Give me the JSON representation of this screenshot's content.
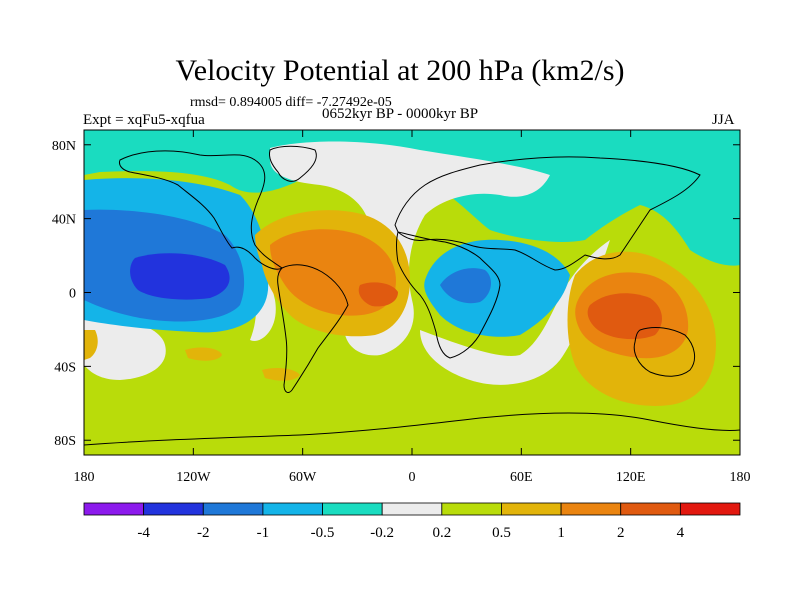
{
  "title": "Velocity Potential at 200 hPa (km2/s)",
  "stats": "rmsd= 0.894005 diff= -7.27492e-05",
  "experiment": "Expt = xqFu5-xqfua",
  "period": "0652kyr BP - 0000kyr BP",
  "season": "JJA",
  "y_ticks": [
    {
      "label": "80N",
      "lat": 80
    },
    {
      "label": "40N",
      "lat": 40
    },
    {
      "label": "0",
      "lat": 0
    },
    {
      "label": "40S",
      "lat": -40
    },
    {
      "label": "80S",
      "lat": -80
    }
  ],
  "x_ticks": [
    {
      "label": "180",
      "lon": -180
    },
    {
      "label": "120W",
      "lon": -120
    },
    {
      "label": "60W",
      "lon": -60
    },
    {
      "label": "0",
      "lon": 0
    },
    {
      "label": "60E",
      "lon": 60
    },
    {
      "label": "120E",
      "lon": 120
    },
    {
      "label": "180",
      "lon": 180
    }
  ],
  "colorbar": {
    "colors": [
      "#8c1aec",
      "#2233dd",
      "#1f78d8",
      "#14b4e8",
      "#1adcc0",
      "#ececec",
      "#b9dc0a",
      "#e2b40a",
      "#ea8410",
      "#e05a10",
      "#e2180f"
    ],
    "labels": [
      "-4",
      "-2",
      "-1",
      "-0.5",
      "-0.2",
      "0.2",
      "0.5",
      "1",
      "2",
      "4"
    ]
  }
}
